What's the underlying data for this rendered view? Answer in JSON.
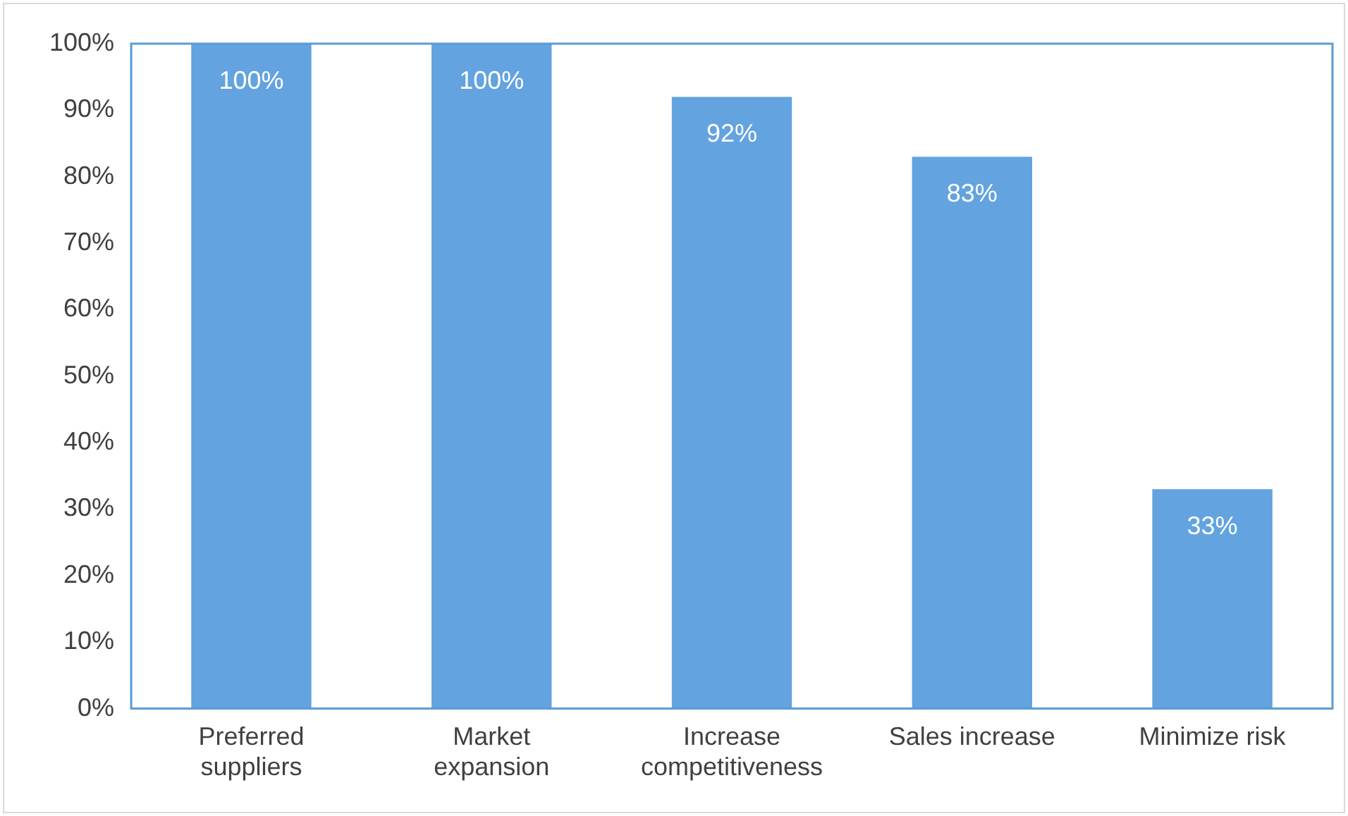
{
  "chart_data": {
    "type": "bar",
    "categories": [
      "Preferred suppliers",
      "Market expansion",
      "Increase competitiveness",
      "Sales increase",
      "Minimize risk"
    ],
    "values": [
      100,
      100,
      92,
      83,
      33
    ],
    "color": "#62a3e0",
    "value_labels": [
      "100%",
      "100%",
      "92%",
      "83%",
      "33%"
    ],
    "ylim": [
      0,
      100
    ],
    "yticks": [
      {
        "value": 0,
        "label": "0%"
      },
      {
        "value": 10,
        "label": "10%"
      },
      {
        "value": 20,
        "label": "20%"
      },
      {
        "value": 30,
        "label": "30%"
      },
      {
        "value": 40,
        "label": "40%"
      },
      {
        "value": 50,
        "label": "50%"
      },
      {
        "value": 60,
        "label": "60%"
      },
      {
        "value": 70,
        "label": "70%"
      },
      {
        "value": 80,
        "label": "80%"
      },
      {
        "value": 90,
        "label": "90%"
      },
      {
        "value": 100,
        "label": "100%"
      }
    ],
    "grid": false,
    "legend": false
  }
}
